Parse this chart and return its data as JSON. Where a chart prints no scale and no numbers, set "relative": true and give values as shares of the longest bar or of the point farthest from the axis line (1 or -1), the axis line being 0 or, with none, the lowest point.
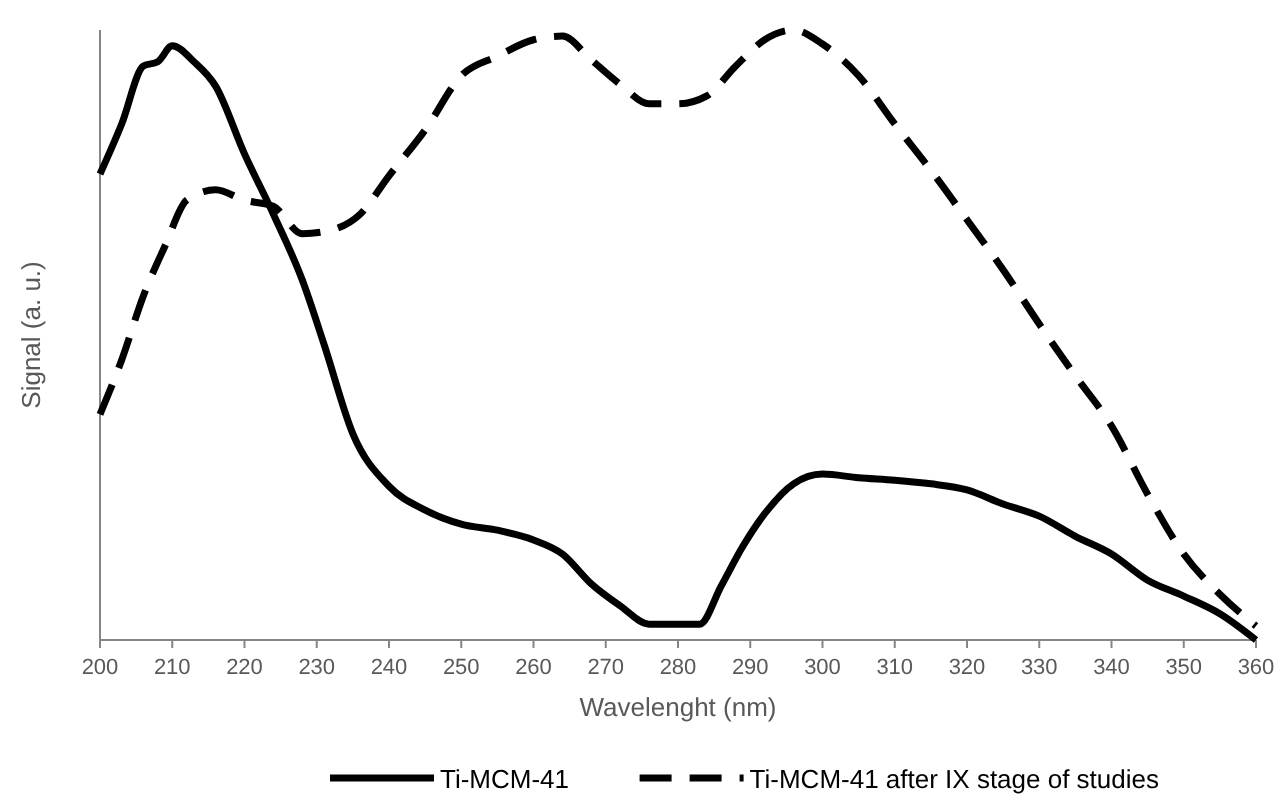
{
  "chart_data": {
    "type": "line",
    "relative": true,
    "xlabel": "Wavelenght (nm)",
    "ylabel": "Signal (a. u.)",
    "xlim": [
      200,
      360
    ],
    "xticks": [
      200,
      210,
      220,
      230,
      240,
      250,
      260,
      270,
      280,
      290,
      300,
      310,
      320,
      330,
      340,
      350,
      360
    ],
    "legend": "bottom",
    "grid": false,
    "marker": "none",
    "series": [
      {
        "name": "Ti-MCM-41",
        "color": "#000000",
        "line_style": "solid",
        "x": [
          200,
          203,
          206,
          208,
          210,
          213,
          216,
          220,
          224,
          228,
          231,
          235,
          240,
          245,
          250,
          255,
          260,
          264,
          268,
          272,
          276,
          280,
          283,
          286,
          289,
          292,
          296,
          300,
          305,
          310,
          315,
          320,
          325,
          330,
          335,
          340,
          345,
          350,
          355,
          360
        ],
        "values": [
          0.764,
          0.846,
          0.941,
          0.948,
          0.974,
          0.948,
          0.908,
          0.797,
          0.698,
          0.59,
          0.485,
          0.338,
          0.252,
          0.213,
          0.19,
          0.18,
          0.164,
          0.141,
          0.092,
          0.056,
          0.026,
          0.026,
          0.026,
          0.089,
          0.154,
          0.207,
          0.256,
          0.272,
          0.266,
          0.262,
          0.256,
          0.246,
          0.223,
          0.203,
          0.17,
          0.141,
          0.098,
          0.072,
          0.043,
          0
        ]
      },
      {
        "name": "Ti-MCM-41 after IX stage of studies",
        "color": "#000000",
        "line_style": "dashed",
        "x": [
          200,
          203,
          206,
          209,
          212,
          216,
          220,
          224,
          228,
          232,
          236,
          240,
          245,
          250,
          255,
          260,
          264,
          268,
          272,
          276,
          280,
          284,
          288,
          292,
          296,
          300,
          305,
          310,
          315,
          320,
          325,
          330,
          335,
          340,
          345,
          350,
          355,
          360
        ],
        "values": [
          0.37,
          0.459,
          0.564,
          0.646,
          0.721,
          0.738,
          0.721,
          0.711,
          0.666,
          0.672,
          0.698,
          0.761,
          0.836,
          0.925,
          0.957,
          0.984,
          0.99,
          0.951,
          0.911,
          0.879,
          0.879,
          0.892,
          0.941,
          0.984,
          1.0,
          0.977,
          0.925,
          0.846,
          0.77,
          0.689,
          0.607,
          0.518,
          0.433,
          0.351,
          0.239,
          0.141,
          0.075,
          0.023
        ]
      }
    ]
  }
}
